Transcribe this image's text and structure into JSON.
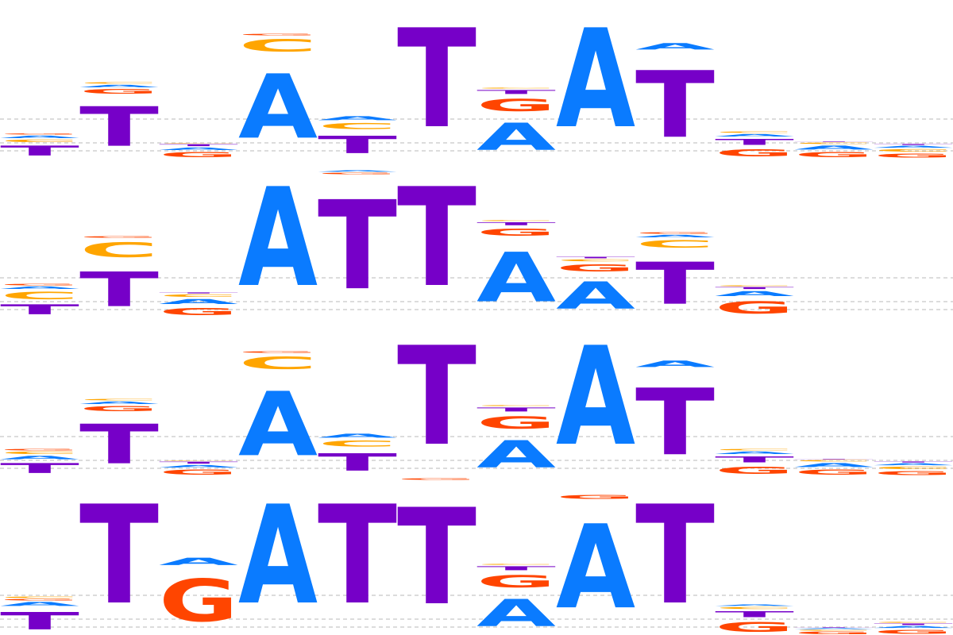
{
  "colors": {
    "A": "#0a7bff",
    "C": "#ffa500",
    "G": "#ff4500",
    "T": "#7600c8"
  },
  "chart_data": {
    "type": "sequence-logo",
    "alphabet": [
      "A",
      "C",
      "G",
      "T"
    ],
    "ylim": [
      0,
      2
    ],
    "gridlines": [
      0.5,
      0.2,
      0.1
    ],
    "logos": [
      {
        "name": "logo-1",
        "columns": [
          [
            [
              "T",
              0.2
            ],
            [
              "C",
              0.05
            ],
            [
              "A",
              0.05
            ],
            [
              "G",
              0.02
            ]
          ],
          [
            [
              "T",
              0.8
            ],
            [
              "G",
              0.09
            ],
            [
              "A",
              0.05
            ],
            [
              "C",
              0.03
            ]
          ],
          [
            [
              "G",
              0.1
            ],
            [
              "A",
              0.05
            ],
            [
              "T",
              0.04
            ],
            [
              "C",
              0.01
            ]
          ],
          [
            [
              "A",
              1.3
            ],
            [
              "C",
              0.25
            ],
            [
              "G",
              0.03
            ]
          ],
          [
            [
              "T",
              0.35
            ],
            [
              "C",
              0.12
            ],
            [
              "A",
              0.08
            ]
          ],
          [
            [
              "T",
              2.0
            ]
          ],
          [
            [
              "A",
              0.55
            ],
            [
              "G",
              0.25
            ],
            [
              "T",
              0.08
            ],
            [
              "C",
              0.02
            ]
          ],
          [
            [
              "A",
              2.0
            ]
          ],
          [
            [
              "T",
              1.35
            ],
            [
              "A",
              0.13
            ]
          ],
          [
            [
              "G",
              0.15
            ],
            [
              "T",
              0.12
            ],
            [
              "A",
              0.05
            ],
            [
              "C",
              0.03
            ]
          ],
          [
            [
              "G",
              0.1
            ],
            [
              "A",
              0.08
            ],
            [
              "C",
              0.03
            ],
            [
              "T",
              0.01
            ]
          ],
          [
            [
              "G",
              0.08
            ],
            [
              "C",
              0.05
            ],
            [
              "A",
              0.04
            ],
            [
              "T",
              0.02
            ]
          ]
        ]
      },
      {
        "name": "logo-2",
        "columns": [
          [
            [
              "T",
              0.2
            ],
            [
              "C",
              0.15
            ],
            [
              "A",
              0.05
            ],
            [
              "G",
              0.03
            ]
          ],
          [
            [
              "T",
              0.7
            ],
            [
              "C",
              0.3
            ],
            [
              "G",
              0.03
            ]
          ],
          [
            [
              "G",
              0.15
            ],
            [
              "A",
              0.1
            ],
            [
              "C",
              0.05
            ],
            [
              "T",
              0.02
            ]
          ],
          [
            [
              "A",
              2.0
            ]
          ],
          [
            [
              "T",
              1.8
            ],
            [
              "G",
              0.03
            ],
            [
              "A",
              0.03
            ]
          ],
          [
            [
              "T",
              2.0
            ]
          ],
          [
            [
              "A",
              1.0
            ],
            [
              "G",
              0.15
            ],
            [
              "T",
              0.06
            ],
            [
              "C",
              0.02
            ]
          ],
          [
            [
              "A",
              0.55
            ],
            [
              "G",
              0.15
            ],
            [
              "C",
              0.04
            ],
            [
              "T",
              0.03
            ]
          ],
          [
            [
              "T",
              0.85
            ],
            [
              "C",
              0.15
            ],
            [
              "A",
              0.05
            ],
            [
              "G",
              0.03
            ]
          ],
          [
            [
              "G",
              0.25
            ],
            [
              "A",
              0.1
            ],
            [
              "T",
              0.04
            ],
            [
              "C",
              0.02
            ]
          ]
        ]
      },
      {
        "name": "logo-3",
        "columns": [
          [
            [
              "T",
              0.2
            ],
            [
              "A",
              0.07
            ],
            [
              "C",
              0.05
            ],
            [
              "G",
              0.03
            ]
          ],
          [
            [
              "T",
              0.8
            ],
            [
              "G",
              0.1
            ],
            [
              "A",
              0.05
            ],
            [
              "C",
              0.03
            ]
          ],
          [
            [
              "G",
              0.1
            ],
            [
              "A",
              0.05
            ],
            [
              "T",
              0.04
            ],
            [
              "C",
              0.01
            ]
          ],
          [
            [
              "A",
              1.3
            ],
            [
              "C",
              0.25
            ],
            [
              "G",
              0.03
            ]
          ],
          [
            [
              "T",
              0.35
            ],
            [
              "C",
              0.12
            ],
            [
              "A",
              0.08
            ]
          ],
          [
            [
              "T",
              2.0
            ]
          ],
          [
            [
              "A",
              0.55
            ],
            [
              "G",
              0.25
            ],
            [
              "T",
              0.08
            ],
            [
              "C",
              0.02
            ]
          ],
          [
            [
              "A",
              2.0
            ]
          ],
          [
            [
              "T",
              1.35
            ],
            [
              "A",
              0.13
            ]
          ],
          [
            [
              "G",
              0.15
            ],
            [
              "T",
              0.12
            ],
            [
              "A",
              0.05
            ],
            [
              "C",
              0.03
            ]
          ],
          [
            [
              "G",
              0.1
            ],
            [
              "A",
              0.08
            ],
            [
              "C",
              0.03
            ],
            [
              "T",
              0.01
            ]
          ],
          [
            [
              "G",
              0.08
            ],
            [
              "C",
              0.05
            ],
            [
              "A",
              0.04
            ],
            [
              "T",
              0.02
            ]
          ]
        ]
      },
      {
        "name": "logo-4",
        "columns": [
          [
            [
              "T",
              0.35
            ],
            [
              "A",
              0.08
            ],
            [
              "G",
              0.03
            ],
            [
              "C",
              0.03
            ]
          ],
          [
            [
              "T",
              2.0
            ]
          ],
          [
            [
              "G",
              0.85
            ],
            [
              "A",
              0.15
            ]
          ],
          [
            [
              "A",
              2.0
            ]
          ],
          [
            [
              "T",
              2.0
            ]
          ],
          [
            [
              "T",
              1.95
            ],
            [
              "G",
              0.03
            ]
          ],
          [
            [
              "A",
              0.55
            ],
            [
              "G",
              0.25
            ],
            [
              "T",
              0.08
            ],
            [
              "C",
              0.02
            ]
          ],
          [
            [
              "A",
              1.7
            ],
            [
              "G",
              0.08
            ]
          ],
          [
            [
              "T",
              2.0
            ]
          ],
          [
            [
              "G",
              0.2
            ],
            [
              "T",
              0.12
            ],
            [
              "C",
              0.04
            ],
            [
              "A",
              0.03
            ]
          ],
          [
            [
              "G",
              0.05
            ],
            [
              "C",
              0.02
            ],
            [
              "A",
              0.02
            ],
            [
              "T",
              0.01
            ]
          ],
          [
            [
              "G",
              0.08
            ],
            [
              "A",
              0.04
            ],
            [
              "T",
              0.03
            ],
            [
              "C",
              0.02
            ]
          ]
        ]
      }
    ]
  }
}
